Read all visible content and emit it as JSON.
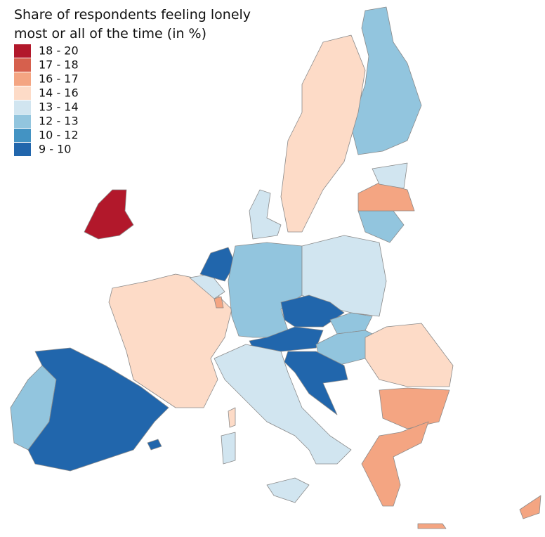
{
  "title_lines": [
    "Share of respondents feeling lonely",
    "most or all of the time (in %)"
  ],
  "legend": [
    {
      "label": "18 - 20",
      "color": "#b2182b"
    },
    {
      "label": "17 - 18",
      "color": "#d6604d"
    },
    {
      "label": "16 - 17",
      "color": "#f4a582"
    },
    {
      "label": "14 - 16",
      "color": "#fddbc7"
    },
    {
      "label": "13 - 14",
      "color": "#d1e5f0"
    },
    {
      "label": "12 - 13",
      "color": "#92c5de"
    },
    {
      "label": "10 - 12",
      "color": "#4393c3"
    },
    {
      "label": "9 - 10",
      "color": "#2166ac"
    }
  ]
}
